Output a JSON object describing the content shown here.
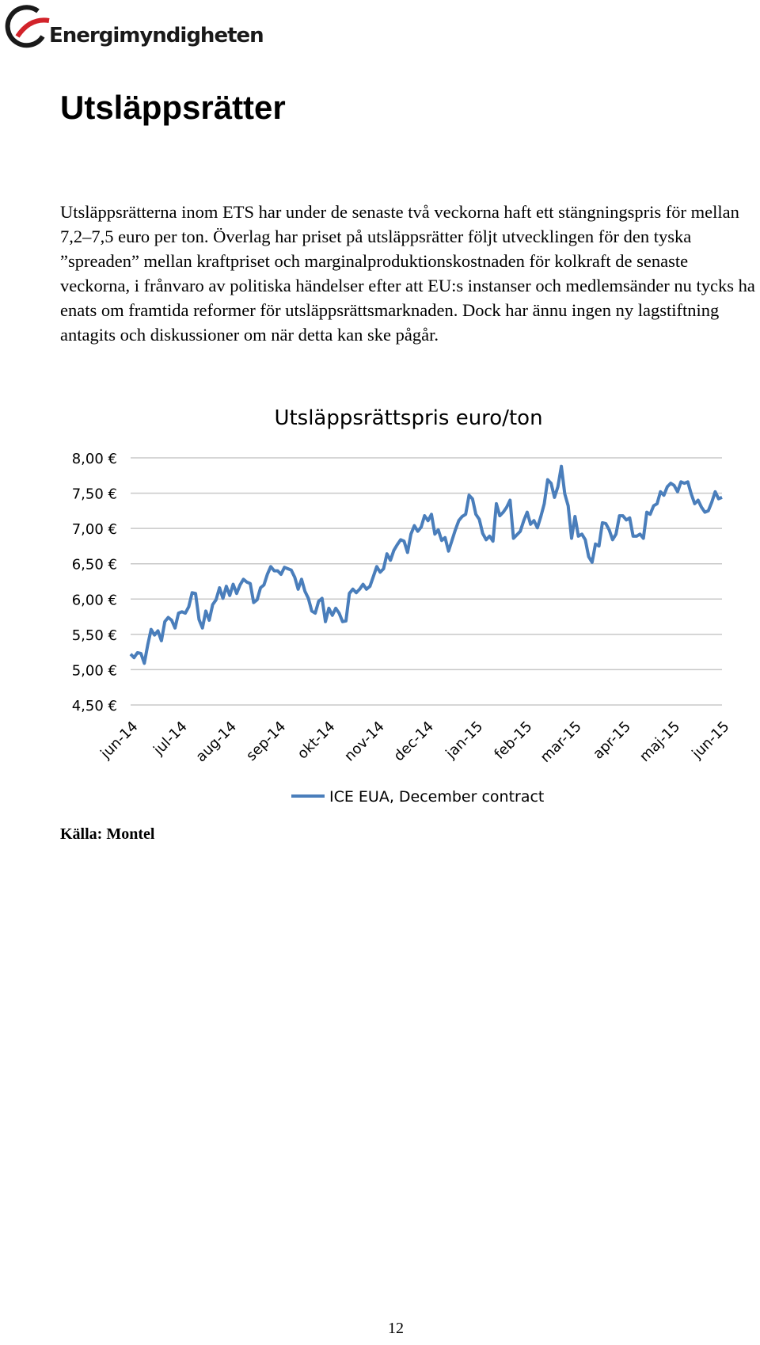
{
  "header": {
    "logo_text": "Energimyndigheten"
  },
  "title": "Utsläppsrätter",
  "paragraph": "Utsläppsrätterna inom ETS har under de senaste två veckorna haft ett stängningspris för mellan 7,2–7,5 euro per ton. Överlag har priset på utsläppsrätter följt utvecklingen för den tyska ”spreaden” mellan kraftpriset och marginalproduktionskostnaden för kolkraft de senaste veckorna, i frånvaro av politiska händelser efter att EU:s instanser och medlemsänder nu tycks ha enats om framtida reformer för utsläppsrättsmarknaden. Dock har ännu ingen ny lagstiftning antagits och diskussioner om när detta kan ske pågår.",
  "chart_data": {
    "type": "line",
    "title": "Utsläppsrättspris euro/ton",
    "xtick_labels": [
      "jun-14",
      "jul-14",
      "aug-14",
      "sep-14",
      "okt-14",
      "nov-14",
      "dec-14",
      "jan-15",
      "feb-15",
      "mar-15",
      "apr-15",
      "maj-15",
      "jun-15"
    ],
    "ylim": [
      4.5,
      8.0
    ],
    "yticks": [
      {
        "value": 4.5,
        "label": "4,50 €"
      },
      {
        "value": 5.0,
        "label": "5,00 €"
      },
      {
        "value": 5.5,
        "label": "5,50 €"
      },
      {
        "value": 6.0,
        "label": "6,00 €"
      },
      {
        "value": 6.5,
        "label": "6,50 €"
      },
      {
        "value": 7.0,
        "label": "7,00 €"
      },
      {
        "value": 7.5,
        "label": "7,50 €"
      },
      {
        "value": 8.0,
        "label": "8,00 €"
      }
    ],
    "grid": true,
    "legend": "bottom",
    "series": [
      {
        "name": "ICE EUA, December contract",
        "color": "#4a7ebb",
        "values": [
          5.22,
          5.17,
          5.24,
          5.23,
          5.09,
          5.35,
          5.57,
          5.49,
          5.55,
          5.41,
          5.68,
          5.74,
          5.7,
          5.59,
          5.8,
          5.82,
          5.8,
          5.89,
          6.09,
          6.08,
          5.71,
          5.59,
          5.83,
          5.7,
          5.92,
          5.99,
          6.16,
          6.01,
          6.18,
          6.05,
          6.21,
          6.08,
          6.2,
          6.28,
          6.24,
          6.22,
          5.95,
          5.99,
          6.16,
          6.2,
          6.35,
          6.46,
          6.4,
          6.4,
          6.35,
          6.45,
          6.43,
          6.41,
          6.31,
          6.14,
          6.28,
          6.11,
          6.01,
          5.83,
          5.8,
          5.97,
          6.01,
          5.68,
          5.87,
          5.77,
          5.87,
          5.8,
          5.68,
          5.69,
          6.08,
          6.14,
          6.09,
          6.14,
          6.21,
          6.14,
          6.18,
          6.32,
          6.46,
          6.38,
          6.43,
          6.64,
          6.55,
          6.69,
          6.77,
          6.84,
          6.82,
          6.66,
          6.92,
          7.04,
          6.96,
          7.02,
          7.18,
          7.11,
          7.2,
          6.92,
          6.98,
          6.83,
          6.87,
          6.68,
          6.83,
          6.98,
          7.11,
          7.17,
          7.2,
          7.47,
          7.42,
          7.2,
          7.13,
          6.93,
          6.84,
          6.89,
          6.82,
          7.35,
          7.18,
          7.23,
          7.3,
          7.4,
          6.86,
          6.91,
          6.96,
          7.11,
          7.23,
          7.06,
          7.11,
          7.01,
          7.17,
          7.35,
          7.69,
          7.64,
          7.44,
          7.59,
          7.88,
          7.49,
          7.32,
          6.86,
          7.17,
          6.89,
          6.92,
          6.84,
          6.6,
          6.52,
          6.78,
          6.75,
          7.08,
          7.07,
          6.98,
          6.84,
          6.92,
          7.18,
          7.18,
          7.12,
          7.15,
          6.89,
          6.89,
          6.92,
          6.86,
          7.23,
          7.2,
          7.32,
          7.35,
          7.52,
          7.47,
          7.59,
          7.64,
          7.61,
          7.52,
          7.66,
          7.64,
          7.66,
          7.49,
          7.35,
          7.4,
          7.3,
          7.23,
          7.25,
          7.37,
          7.52,
          7.42,
          7.44
        ]
      }
    ]
  },
  "source": "Källa: Montel",
  "page_number": "12"
}
